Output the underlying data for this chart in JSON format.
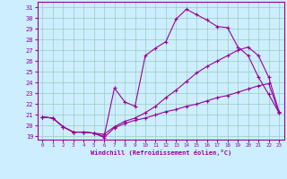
{
  "xlabel": "Windchill (Refroidissement éolien,°C)",
  "bg_color": "#cceeff",
  "grid_color": "#99ccbb",
  "line_color": "#990099",
  "xlim": [
    -0.5,
    23.5
  ],
  "ylim": [
    18.7,
    31.5
  ],
  "xticks": [
    0,
    1,
    2,
    3,
    4,
    5,
    6,
    7,
    8,
    9,
    10,
    11,
    12,
    13,
    14,
    15,
    16,
    17,
    18,
    19,
    20,
    21,
    22,
    23
  ],
  "yticks": [
    19,
    20,
    21,
    22,
    23,
    24,
    25,
    26,
    27,
    28,
    29,
    30,
    31
  ],
  "line1_x": [
    0,
    1,
    2,
    3,
    4,
    5,
    6,
    7,
    8,
    9,
    10,
    11,
    12,
    13,
    14,
    15,
    16,
    17,
    18,
    19,
    20,
    21,
    22,
    23
  ],
  "line1_y": [
    20.8,
    20.7,
    19.9,
    19.4,
    19.4,
    19.3,
    18.9,
    19.8,
    20.2,
    20.5,
    20.7,
    21.0,
    21.3,
    21.5,
    21.8,
    22.0,
    22.3,
    22.6,
    22.8,
    23.1,
    23.4,
    23.7,
    23.9,
    21.2
  ],
  "line2_x": [
    0,
    1,
    2,
    3,
    4,
    5,
    6,
    7,
    8,
    9,
    10,
    11,
    12,
    13,
    14,
    15,
    16,
    17,
    18,
    19,
    20,
    21,
    22,
    23
  ],
  "line2_y": [
    20.8,
    20.7,
    19.9,
    19.4,
    19.4,
    19.3,
    19.2,
    19.9,
    20.4,
    20.7,
    21.2,
    21.8,
    22.6,
    23.3,
    24.1,
    24.9,
    25.5,
    26.0,
    26.5,
    27.0,
    27.3,
    26.5,
    24.5,
    21.3
  ],
  "line3_x": [
    0,
    1,
    2,
    3,
    4,
    5,
    6,
    7,
    8,
    9,
    10,
    11,
    12,
    13,
    14,
    15,
    16,
    17,
    18,
    19,
    20,
    21,
    22,
    23
  ],
  "line3_y": [
    20.8,
    20.7,
    19.9,
    19.4,
    19.4,
    19.3,
    19.0,
    23.5,
    22.2,
    21.8,
    26.5,
    27.2,
    27.8,
    29.9,
    30.8,
    30.3,
    29.8,
    29.2,
    29.1,
    27.3,
    26.5,
    24.5,
    22.9,
    21.2
  ]
}
